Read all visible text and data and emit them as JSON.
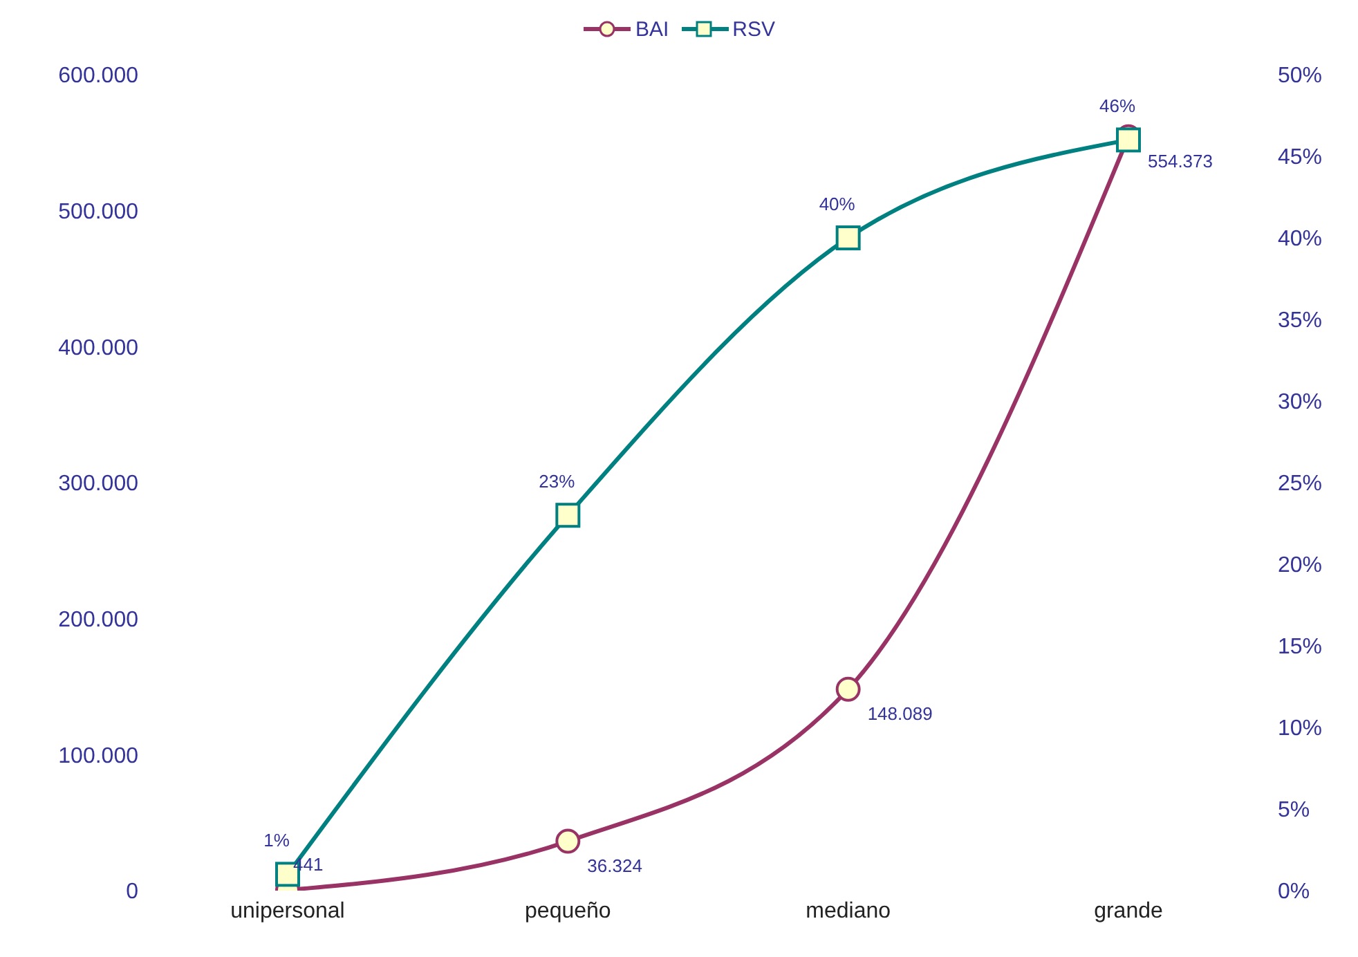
{
  "chart_data": {
    "type": "line",
    "categories": [
      "unipersonal",
      "pequeño",
      "mediano",
      "grande"
    ],
    "series": [
      {
        "name": "BAI",
        "color": "#993366",
        "marker": "circle",
        "values": [
          441,
          36324,
          148089,
          554373
        ],
        "value_labels": [
          "441",
          "36.324",
          "148.089",
          "554.373"
        ]
      },
      {
        "name": "RSV",
        "color": "#008080",
        "marker": "square",
        "axis": "y2",
        "values": [
          1,
          23,
          40,
          46
        ],
        "value_labels": [
          "1%",
          "23%",
          "40%",
          "46%"
        ]
      }
    ],
    "ylim": [
      0,
      600000
    ],
    "yticks": [
      {
        "value": 0,
        "label": "0"
      },
      {
        "value": 100000,
        "label": "100.000"
      },
      {
        "value": 200000,
        "label": "200.000"
      },
      {
        "value": 300000,
        "label": "300.000"
      },
      {
        "value": 400000,
        "label": "400.000"
      },
      {
        "value": 500000,
        "label": "500.000"
      },
      {
        "value": 600000,
        "label": "600.000"
      }
    ],
    "y2lim": [
      0,
      50
    ],
    "y2ticks": [
      {
        "value": 0,
        "label": "0%"
      },
      {
        "value": 5,
        "label": "5%"
      },
      {
        "value": 10,
        "label": "10%"
      },
      {
        "value": 15,
        "label": "15%"
      },
      {
        "value": 20,
        "label": "20%"
      },
      {
        "value": 25,
        "label": "25%"
      },
      {
        "value": 30,
        "label": "30%"
      },
      {
        "value": 35,
        "label": "35%"
      },
      {
        "value": 40,
        "label": "40%"
      },
      {
        "value": 45,
        "label": "45%"
      },
      {
        "value": 50,
        "label": "50%"
      }
    ],
    "grid": false,
    "legend": "top",
    "line_style": "solid"
  }
}
